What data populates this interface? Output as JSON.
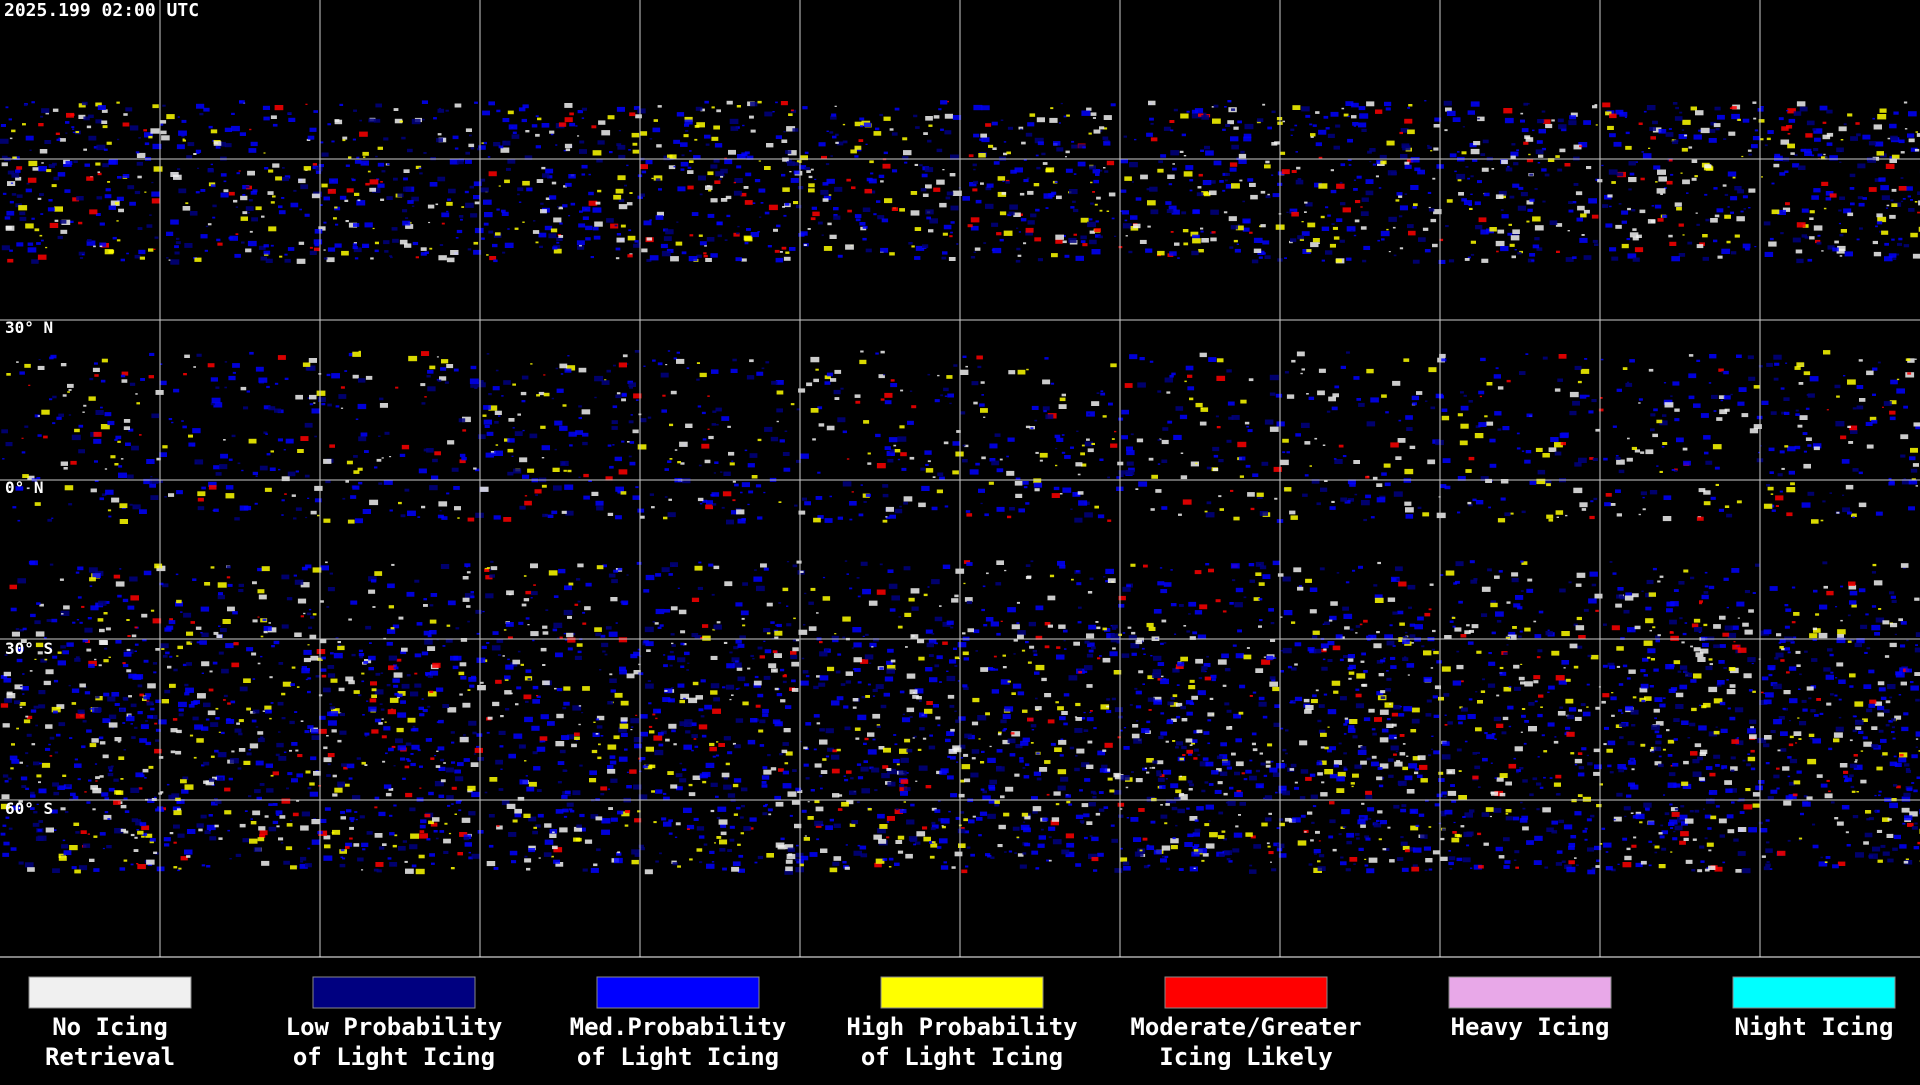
{
  "timestamp": "2025.199 02:00 UTC",
  "latitude_labels": [
    "30° N",
    "0° N",
    "30° S",
    "60° S"
  ],
  "legend": [
    {
      "color": "#f0f0f0",
      "label": [
        "No Icing",
        "Retrieval"
      ]
    },
    {
      "color": "#000080",
      "label": [
        "Low Probability",
        "of Light Icing"
      ]
    },
    {
      "color": "#0000ff",
      "label": [
        "Med.Probability",
        "of Light Icing"
      ]
    },
    {
      "color": "#ffff00",
      "label": [
        "High Probability",
        "of Light Icing"
      ]
    },
    {
      "color": "#ff0000",
      "label": [
        "Moderate/Greater",
        "Icing Likely"
      ]
    },
    {
      "color": "#e8a8e8",
      "label": [
        "Heavy Icing"
      ]
    },
    {
      "color": "#00ffff",
      "label": [
        "Night Icing"
      ]
    }
  ]
}
